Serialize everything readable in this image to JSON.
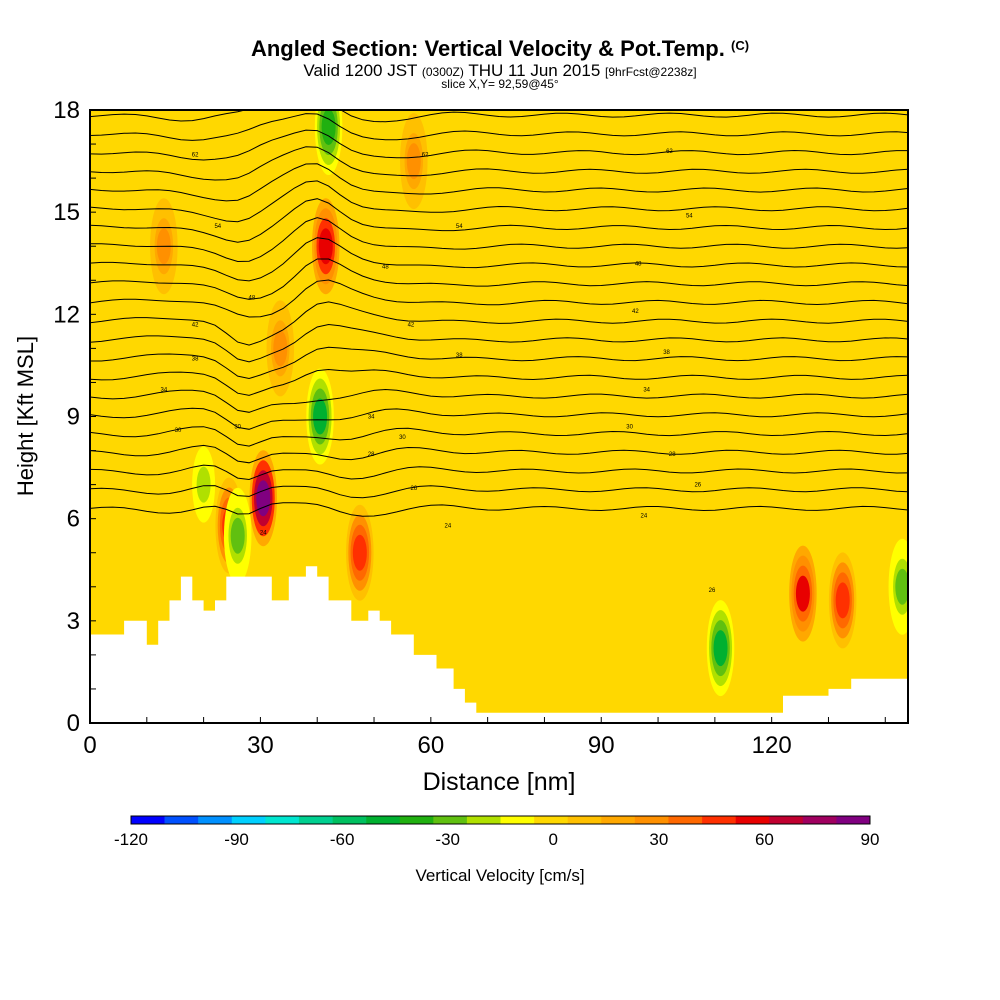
{
  "header": {
    "title": "Angled Section: Vertical Velocity & Pot.Temp.",
    "title_unit": "(C)",
    "valid_prefix": "Valid 1200 JST",
    "valid_utc": "(0300Z)",
    "valid_date": "THU 11 Jun 2015",
    "forecast": "[9hrFcst@2238z]",
    "slice": "slice X,Y= 92,59@45°"
  },
  "chart_data": {
    "type": "heatmap",
    "xlabel": "Distance [nm]",
    "ylabel": "Height [Kft MSL]",
    "xlim": [
      0,
      144
    ],
    "ylim": [
      0,
      18
    ],
    "xticks": [
      0,
      30,
      60,
      90,
      120
    ],
    "yticks": [
      0,
      3,
      6,
      9,
      12,
      15,
      18
    ],
    "colorbar": {
      "label": "Vertical Velocity [cm/s]",
      "range": [
        -120,
        90
      ],
      "ticks": [
        -120,
        -90,
        -60,
        -30,
        0,
        30,
        60,
        90
      ],
      "colors": [
        "#0000ff",
        "#0050ff",
        "#0090ff",
        "#00d0ff",
        "#00e6d0",
        "#00d090",
        "#00c060",
        "#00b030",
        "#20b010",
        "#60c010",
        "#b0e000",
        "#ffff00",
        "#ffd800",
        "#ffc000",
        "#ffa800",
        "#ff9000",
        "#ff6800",
        "#ff3000",
        "#e80000",
        "#c00030",
        "#a00060",
        "#800080"
      ]
    },
    "terrain_kft": [
      [
        0,
        2.6
      ],
      [
        6,
        2.6
      ],
      [
        6,
        3.0
      ],
      [
        10,
        3.0
      ],
      [
        10,
        2.3
      ],
      [
        12,
        2.3
      ],
      [
        12,
        3.0
      ],
      [
        14,
        3.0
      ],
      [
        14,
        3.6
      ],
      [
        16,
        3.6
      ],
      [
        16,
        4.3
      ],
      [
        18,
        4.3
      ],
      [
        18,
        3.6
      ],
      [
        20,
        3.6
      ],
      [
        20,
        3.3
      ],
      [
        22,
        3.3
      ],
      [
        22,
        3.6
      ],
      [
        24,
        3.6
      ],
      [
        24,
        4.3
      ],
      [
        32,
        4.3
      ],
      [
        32,
        3.6
      ],
      [
        35,
        3.6
      ],
      [
        35,
        4.3
      ],
      [
        38,
        4.3
      ],
      [
        38,
        4.6
      ],
      [
        40,
        4.6
      ],
      [
        40,
        4.3
      ],
      [
        42,
        4.3
      ],
      [
        42,
        3.6
      ],
      [
        46,
        3.6
      ],
      [
        46,
        3.0
      ],
      [
        49,
        3.0
      ],
      [
        49,
        3.3
      ],
      [
        51,
        3.3
      ],
      [
        51,
        3.0
      ],
      [
        53,
        3.0
      ],
      [
        53,
        2.6
      ],
      [
        57,
        2.6
      ],
      [
        57,
        2.0
      ],
      [
        61,
        2.0
      ],
      [
        61,
        1.6
      ],
      [
        64,
        1.6
      ],
      [
        64,
        1.0
      ],
      [
        66,
        1.0
      ],
      [
        66,
        0.6
      ],
      [
        68,
        0.6
      ],
      [
        68,
        0.3
      ],
      [
        122,
        0.3
      ],
      [
        122,
        0.8
      ],
      [
        130,
        0.8
      ],
      [
        130,
        1.0
      ],
      [
        134,
        1.0
      ],
      [
        134,
        1.3
      ],
      [
        144,
        1.3
      ]
    ],
    "updrafts": [
      {
        "x": 30.5,
        "y": 6.6,
        "w": 90,
        "note": "max core"
      },
      {
        "x": 41.5,
        "y": 14.0,
        "w": 60
      },
      {
        "x": 24.5,
        "y": 5.8,
        "w": 50
      },
      {
        "x": 47.5,
        "y": 5.0,
        "w": 50
      },
      {
        "x": 125.5,
        "y": 3.8,
        "w": 55
      },
      {
        "x": 132.5,
        "y": 3.6,
        "w": 50
      },
      {
        "x": 33.5,
        "y": 11.0,
        "w": 25
      },
      {
        "x": 13.0,
        "y": 14.0,
        "w": 25
      },
      {
        "x": 57.0,
        "y": 16.5,
        "w": 25
      }
    ],
    "downdrafts": [
      {
        "x": 40.5,
        "y": 9.0,
        "w": -45
      },
      {
        "x": 42.0,
        "y": 17.5,
        "w": -40
      },
      {
        "x": 111.0,
        "y": 2.2,
        "w": -45
      },
      {
        "x": 26.0,
        "y": 5.5,
        "w": -30
      },
      {
        "x": 20.0,
        "y": 7.0,
        "w": -20
      },
      {
        "x": 143.0,
        "y": 4.0,
        "w": -25
      }
    ],
    "theta_contour_labels": [
      {
        "x": 18.5,
        "y": 16.7,
        "text": "62"
      },
      {
        "x": 59.0,
        "y": 16.7,
        "text": "62"
      },
      {
        "x": 102.0,
        "y": 16.8,
        "text": "62"
      },
      {
        "x": 22.5,
        "y": 14.6,
        "text": "54"
      },
      {
        "x": 65.0,
        "y": 14.6,
        "text": "54"
      },
      {
        "x": 105.5,
        "y": 14.9,
        "text": "54"
      },
      {
        "x": 28.5,
        "y": 12.5,
        "text": "48"
      },
      {
        "x": 52.0,
        "y": 13.4,
        "text": "48"
      },
      {
        "x": 96.5,
        "y": 13.5,
        "text": "48"
      },
      {
        "x": 18.5,
        "y": 11.7,
        "text": "42"
      },
      {
        "x": 56.5,
        "y": 11.7,
        "text": "42"
      },
      {
        "x": 96.0,
        "y": 12.1,
        "text": "42"
      },
      {
        "x": 18.5,
        "y": 10.7,
        "text": "38"
      },
      {
        "x": 65.0,
        "y": 10.8,
        "text": "38"
      },
      {
        "x": 101.5,
        "y": 10.9,
        "text": "38"
      },
      {
        "x": 13.0,
        "y": 9.8,
        "text": "34"
      },
      {
        "x": 49.5,
        "y": 9.0,
        "text": "34"
      },
      {
        "x": 98.0,
        "y": 9.8,
        "text": "34"
      },
      {
        "x": 15.5,
        "y": 8.6,
        "text": "30"
      },
      {
        "x": 26.0,
        "y": 8.7,
        "text": "30"
      },
      {
        "x": 55.0,
        "y": 8.4,
        "text": "30"
      },
      {
        "x": 95.0,
        "y": 8.7,
        "text": "30"
      },
      {
        "x": 49.5,
        "y": 7.9,
        "text": "28"
      },
      {
        "x": 102.5,
        "y": 7.9,
        "text": "28"
      },
      {
        "x": 57.0,
        "y": 6.9,
        "text": "26"
      },
      {
        "x": 107.0,
        "y": 7.0,
        "text": "26"
      },
      {
        "x": 63.0,
        "y": 5.8,
        "text": "24"
      },
      {
        "x": 97.5,
        "y": 6.1,
        "text": "24"
      },
      {
        "x": 30.5,
        "y": 5.6,
        "text": "24"
      },
      {
        "x": 109.5,
        "y": 3.9,
        "text": "26"
      }
    ]
  }
}
